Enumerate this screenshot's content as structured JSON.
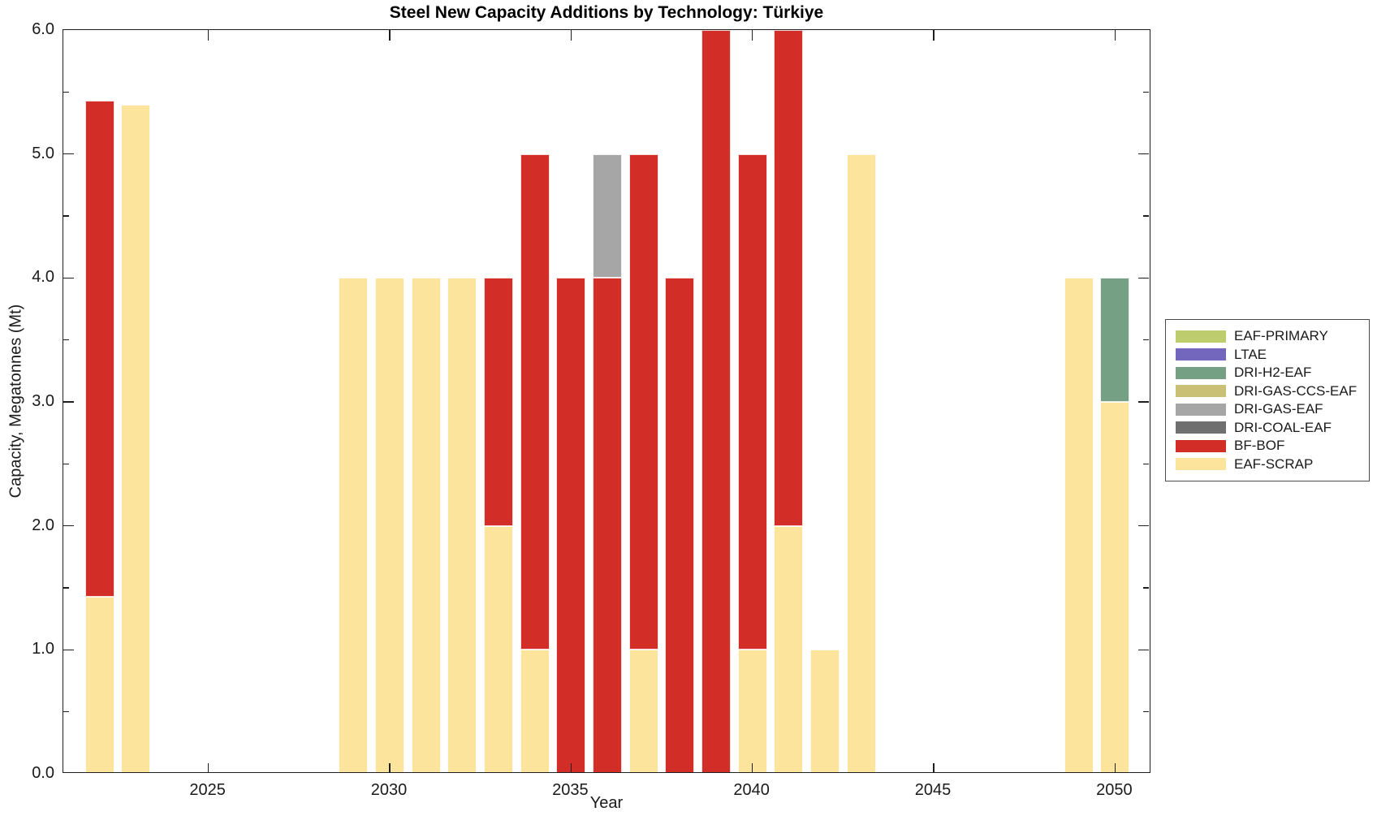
{
  "chart_data": {
    "type": "bar",
    "stacked": true,
    "title": "Steel New Capacity Additions by Technology: Türkiye",
    "xlabel": "Year",
    "ylabel": "Capacity, Megatonnes (Mt)",
    "xlim": [
      2021,
      2051
    ],
    "ylim": [
      0.0,
      6.0
    ],
    "x_ticks": [
      2025,
      2030,
      2035,
      2040,
      2045,
      2050
    ],
    "y_major_ticks": [
      0.0,
      1.0,
      2.0,
      3.0,
      4.0,
      5.0,
      6.0
    ],
    "y_minor_ticks": [
      0.5,
      1.5,
      2.5,
      3.5,
      4.5,
      5.5
    ],
    "grid": false,
    "legend_position": "right-outside",
    "bar_width_years": 0.8,
    "legend": [
      {
        "label": "EAF-PRIMARY",
        "color": "#bdcd6e"
      },
      {
        "label": "LTAE",
        "color": "#7267bd"
      },
      {
        "label": "DRI-H2-EAF",
        "color": "#76a083"
      },
      {
        "label": "DRI-GAS-CCS-EAF",
        "color": "#c9bf75"
      },
      {
        "label": "DRI-GAS-EAF",
        "color": "#a6a6a6"
      },
      {
        "label": "DRI-COAL-EAF",
        "color": "#6f6f6f"
      },
      {
        "label": "BF-BOF",
        "color": "#d22d26"
      },
      {
        "label": "EAF-SCRAP",
        "color": "#fce49d"
      }
    ],
    "bars": [
      {
        "year": 2022,
        "segments": [
          {
            "tech": "EAF-SCRAP",
            "value": 1.43
          },
          {
            "tech": "BF-BOF",
            "value": 4.0
          }
        ]
      },
      {
        "year": 2023,
        "segments": [
          {
            "tech": "EAF-SCRAP",
            "value": 5.4
          }
        ]
      },
      {
        "year": 2029,
        "segments": [
          {
            "tech": "EAF-SCRAP",
            "value": 4.0
          }
        ]
      },
      {
        "year": 2030,
        "segments": [
          {
            "tech": "EAF-SCRAP",
            "value": 4.0
          }
        ]
      },
      {
        "year": 2031,
        "segments": [
          {
            "tech": "EAF-SCRAP",
            "value": 4.0
          }
        ]
      },
      {
        "year": 2032,
        "segments": [
          {
            "tech": "EAF-SCRAP",
            "value": 4.0
          }
        ]
      },
      {
        "year": 2033,
        "segments": [
          {
            "tech": "EAF-SCRAP",
            "value": 2.0
          },
          {
            "tech": "BF-BOF",
            "value": 2.0
          }
        ]
      },
      {
        "year": 2034,
        "segments": [
          {
            "tech": "EAF-SCRAP",
            "value": 1.0
          },
          {
            "tech": "BF-BOF",
            "value": 4.0
          }
        ]
      },
      {
        "year": 2035,
        "segments": [
          {
            "tech": "BF-BOF",
            "value": 4.0
          }
        ]
      },
      {
        "year": 2036,
        "segments": [
          {
            "tech": "BF-BOF",
            "value": 4.0
          },
          {
            "tech": "DRI-GAS-EAF",
            "value": 1.0
          }
        ]
      },
      {
        "year": 2037,
        "segments": [
          {
            "tech": "EAF-SCRAP",
            "value": 1.0
          },
          {
            "tech": "BF-BOF",
            "value": 4.0
          }
        ]
      },
      {
        "year": 2038,
        "segments": [
          {
            "tech": "BF-BOF",
            "value": 4.0
          }
        ]
      },
      {
        "year": 2039,
        "segments": [
          {
            "tech": "BF-BOF",
            "value": 6.0
          }
        ]
      },
      {
        "year": 2040,
        "segments": [
          {
            "tech": "EAF-SCRAP",
            "value": 1.0
          },
          {
            "tech": "BF-BOF",
            "value": 4.0
          }
        ]
      },
      {
        "year": 2041,
        "segments": [
          {
            "tech": "EAF-SCRAP",
            "value": 2.0
          },
          {
            "tech": "BF-BOF",
            "value": 4.0
          }
        ]
      },
      {
        "year": 2042,
        "segments": [
          {
            "tech": "EAF-SCRAP",
            "value": 1.0
          }
        ]
      },
      {
        "year": 2043,
        "segments": [
          {
            "tech": "EAF-SCRAP",
            "value": 5.0
          }
        ]
      },
      {
        "year": 2049,
        "segments": [
          {
            "tech": "EAF-SCRAP",
            "value": 4.0
          }
        ]
      },
      {
        "year": 2050,
        "segments": [
          {
            "tech": "EAF-SCRAP",
            "value": 3.0
          },
          {
            "tech": "DRI-H2-EAF",
            "value": 1.0
          }
        ]
      }
    ]
  }
}
